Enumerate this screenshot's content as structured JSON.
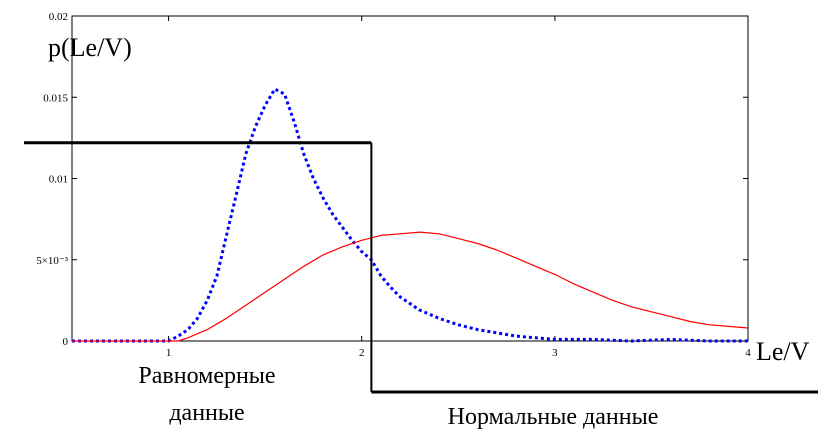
{
  "chart_data": {
    "type": "line",
    "ylabel": "p(Le/V)",
    "xlabel": "Le/V",
    "xlim": [
      0.5,
      4
    ],
    "ylim": [
      0,
      0.02
    ],
    "x_ticks": [
      {
        "value": 1,
        "label": "1"
      },
      {
        "value": 2,
        "label": "2"
      },
      {
        "value": 3,
        "label": "3"
      },
      {
        "value": 4,
        "label": "4"
      }
    ],
    "y_ticks": [
      {
        "value": 0,
        "label": "0"
      },
      {
        "value": 0.005,
        "label": "5×10⁻³"
      },
      {
        "value": 0.01,
        "label": "0.01"
      },
      {
        "value": 0.015,
        "label": "0.015"
      },
      {
        "value": 0.02,
        "label": "0.02"
      }
    ],
    "series": [
      {
        "color": "#0000ff",
        "style": "dotted",
        "x": [
          0.5,
          0.9,
          1.0,
          1.05,
          1.1,
          1.15,
          1.2,
          1.25,
          1.3,
          1.35,
          1.4,
          1.45,
          1.5,
          1.55,
          1.6,
          1.65,
          1.7,
          1.75,
          1.8,
          1.85,
          1.9,
          1.95,
          2.0,
          2.05,
          2.1,
          2.15,
          2.2,
          2.3,
          2.4,
          2.5,
          2.6,
          2.7,
          2.8,
          2.9,
          3.0,
          3.2,
          3.4,
          3.6,
          3.8,
          4.0
        ],
        "y": [
          0.0,
          0.0,
          0.0,
          0.0003,
          0.0007,
          0.0014,
          0.0025,
          0.004,
          0.0065,
          0.009,
          0.0115,
          0.0132,
          0.0145,
          0.0155,
          0.0152,
          0.0135,
          0.0115,
          0.01,
          0.0088,
          0.0078,
          0.007,
          0.0062,
          0.0055,
          0.005,
          0.004,
          0.0033,
          0.0027,
          0.0019,
          0.0014,
          0.001,
          0.0007,
          0.0005,
          0.0003,
          0.0002,
          0.0001,
          0.0001,
          0.0,
          0.0001,
          0.0,
          0.0
        ]
      },
      {
        "color": "#ff0000",
        "style": "solid",
        "x": [
          0.5,
          1.05,
          1.1,
          1.2,
          1.3,
          1.4,
          1.5,
          1.6,
          1.7,
          1.8,
          1.9,
          2.0,
          2.1,
          2.2,
          2.3,
          2.4,
          2.5,
          2.6,
          2.7,
          2.8,
          2.9,
          3.0,
          3.1,
          3.2,
          3.3,
          3.4,
          3.5,
          3.6,
          3.7,
          3.8,
          3.9,
          4.0
        ],
        "y": [
          0.0,
          0.0,
          0.0002,
          0.0007,
          0.0014,
          0.0022,
          0.003,
          0.0038,
          0.0046,
          0.0053,
          0.0058,
          0.0062,
          0.0065,
          0.0066,
          0.0067,
          0.0066,
          0.0063,
          0.006,
          0.0056,
          0.0051,
          0.0046,
          0.0041,
          0.0035,
          0.003,
          0.0025,
          0.0021,
          0.0018,
          0.0015,
          0.0012,
          0.001,
          0.0009,
          0.0008
        ]
      }
    ],
    "threshold_line": {
      "y": 0.0122,
      "x_from": 0.5,
      "x_to": 2.05
    },
    "divider_x": 2.05,
    "bottom_line": {
      "x_from": 2.05,
      "x_to": 4.38
    },
    "annotations": {
      "uniform": [
        "Равномерные",
        "данные"
      ],
      "normal": "Нормальные данные"
    }
  }
}
